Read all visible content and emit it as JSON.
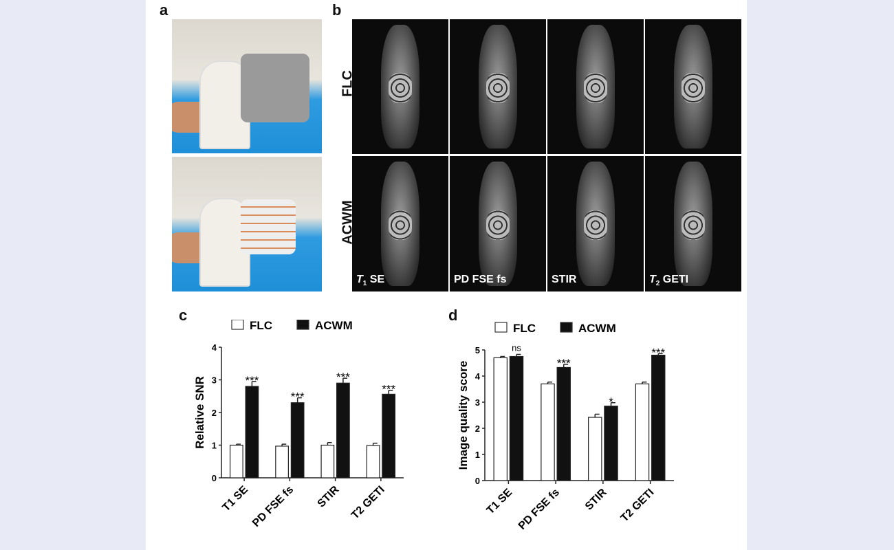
{
  "panels": {
    "a": "a",
    "b": "b",
    "c": "c",
    "d": "d"
  },
  "mri": {
    "rows": [
      "FLC",
      "ACWM"
    ],
    "sequences": [
      {
        "main": "T",
        "sub": "1",
        "rest": " SE"
      },
      {
        "main": "PD FSE fs",
        "sub": "",
        "rest": ""
      },
      {
        "main": "STIR",
        "sub": "",
        "rest": ""
      },
      {
        "main": "T",
        "sub": "2",
        "rest": " GETI"
      }
    ]
  },
  "chart_data": [
    {
      "type": "bar",
      "panel": "c",
      "categories": [
        "T1 SE",
        "PD FSE fs",
        "STIR",
        "T2 GETI"
      ],
      "ylabel": "Relative SNR",
      "ylim": [
        0,
        4
      ],
      "yticks": [
        0,
        1,
        2,
        3,
        4
      ],
      "legend": "top",
      "series": [
        {
          "name": "FLC",
          "color": "#ffffff",
          "values": [
            1.0,
            0.97,
            1.0,
            0.99
          ],
          "errors": [
            0.03,
            0.06,
            0.08,
            0.07
          ]
        },
        {
          "name": "ACWM",
          "color": "#111111",
          "values": [
            2.8,
            2.3,
            2.9,
            2.56
          ],
          "errors": [
            0.15,
            0.15,
            0.15,
            0.12
          ]
        }
      ],
      "significance": [
        "***",
        "***",
        "***",
        "***"
      ]
    },
    {
      "type": "bar",
      "panel": "d",
      "categories": [
        "T1 SE",
        "PD FSE fs",
        "STIR",
        "T2 GETI"
      ],
      "ylabel": "Image quality score",
      "ylim": [
        0,
        5
      ],
      "yticks": [
        0,
        1,
        2,
        3,
        4,
        5
      ],
      "legend": "top",
      "series": [
        {
          "name": "FLC",
          "color": "#ffffff",
          "values": [
            4.7,
            3.7,
            2.42,
            3.7
          ],
          "errors": [
            0.05,
            0.07,
            0.12,
            0.07
          ]
        },
        {
          "name": "ACWM",
          "color": "#111111",
          "values": [
            4.75,
            4.33,
            2.85,
            4.8
          ],
          "errors": [
            0.08,
            0.12,
            0.13,
            0.06
          ]
        }
      ],
      "significance": [
        "ns",
        "***",
        "*",
        "***"
      ]
    }
  ]
}
